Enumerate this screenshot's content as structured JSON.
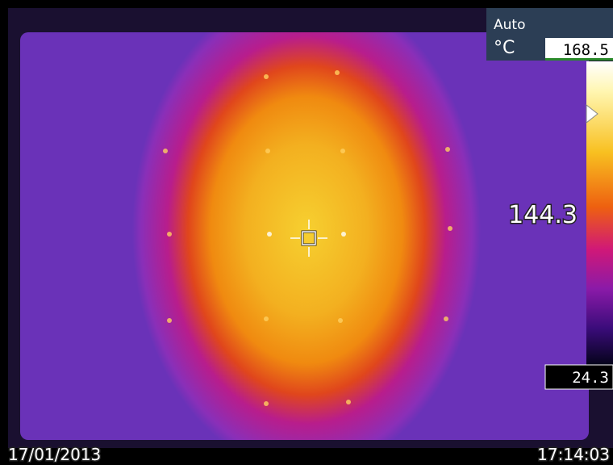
{
  "overlay": {
    "mode": "Auto",
    "unit": "°C",
    "scale_max": "168.5",
    "scale_min": "24.3",
    "spot_temperature": "144.3",
    "date": "17/01/2013",
    "time": "17:14:03"
  }
}
